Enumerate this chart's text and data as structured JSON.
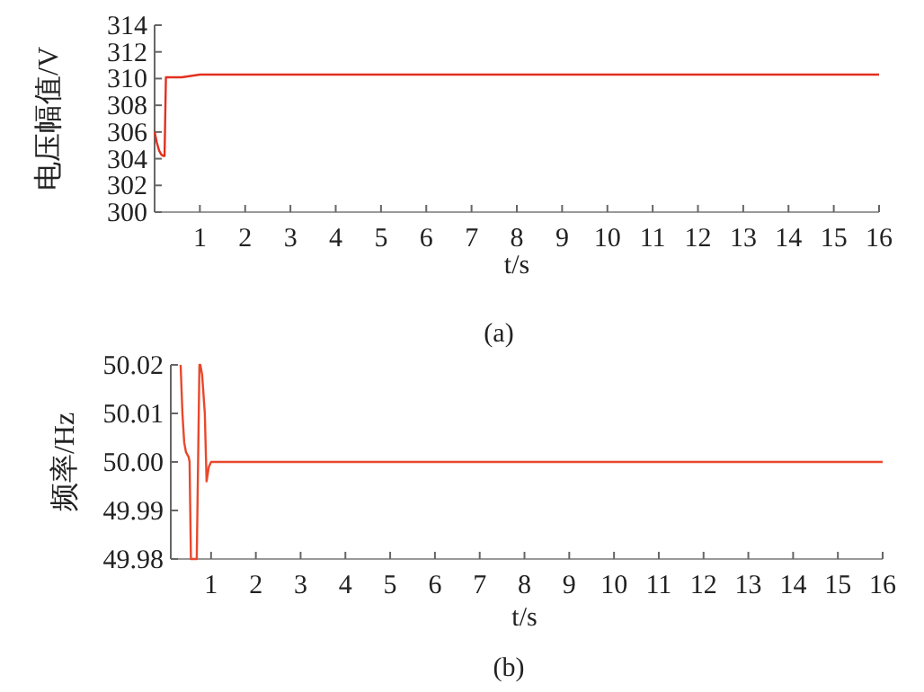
{
  "chart_data": [
    {
      "type": "line",
      "xlabel": "t/s",
      "ylabel": "电压幅值/V",
      "annotations": [
        "(a)"
      ],
      "xlim": [
        0,
        16
      ],
      "ylim": [
        300,
        314
      ],
      "xticks": [
        1,
        2,
        3,
        4,
        5,
        6,
        7,
        8,
        9,
        10,
        11,
        12,
        13,
        14,
        15,
        16
      ],
      "yticks": [
        300,
        302,
        304,
        306,
        308,
        310,
        312,
        314
      ],
      "series": [
        {
          "color": "#e2301e",
          "x": [
            0,
            0.05,
            0.1,
            0.15,
            0.2,
            0.22,
            0.25,
            0.4,
            0.6,
            0.8,
            1,
            8,
            16
          ],
          "values": [
            306,
            305.2,
            304.6,
            304.3,
            304.2,
            304.2,
            310.1,
            310.1,
            310.1,
            310.2,
            310.3,
            310.3,
            310.3
          ]
        }
      ]
    },
    {
      "type": "line",
      "xlabel": "t/s",
      "ylabel": "频率/Hz",
      "annotations": [
        "(b)"
      ],
      "xlim": [
        0.1,
        16
      ],
      "ylim": [
        49.98,
        50.02
      ],
      "xticks": [
        1,
        2,
        3,
        4,
        5,
        6,
        7,
        8,
        9,
        10,
        11,
        12,
        13,
        14,
        15,
        16
      ],
      "yticks": [
        49.98,
        49.99,
        {
          "value": 50,
          "label": "50.00"
        },
        50.01,
        50.02
      ],
      "series": [
        {
          "color": "#e8482c",
          "x": [
            0.32,
            0.36,
            0.4,
            0.44,
            0.5,
            0.52,
            0.55,
            0.68,
            0.74,
            0.76,
            0.8,
            0.86,
            0.9,
            0.95,
            1,
            3,
            16
          ],
          "values": [
            50.02,
            50.01,
            50.004,
            50.002,
            50.001,
            50.0,
            49.98,
            49.98,
            50.02,
            50.02,
            50.018,
            50.01,
            49.996,
            49.999,
            50.0,
            50.0,
            50.0
          ]
        }
      ]
    }
  ]
}
